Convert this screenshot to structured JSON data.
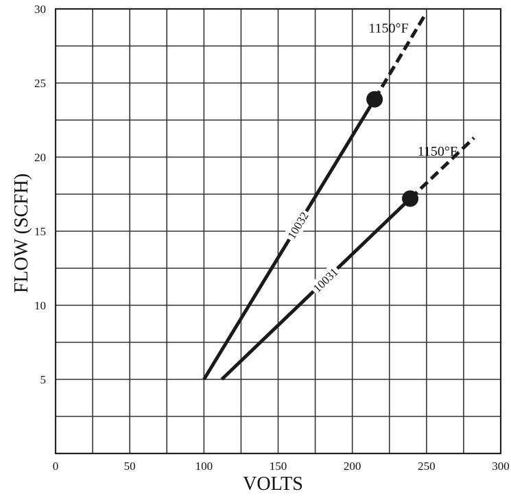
{
  "chart_data": {
    "type": "line",
    "title": "",
    "xlabel": "VOLTS",
    "ylabel": "FLOW (SCFH)",
    "xlim": [
      0,
      300
    ],
    "ylim": [
      0,
      30
    ],
    "x_ticks": [
      "0",
      "50",
      "100",
      "150",
      "200",
      "250",
      "300"
    ],
    "y_ticks": [
      "5",
      "10",
      "15",
      "20",
      "25",
      "30"
    ],
    "grid": true,
    "series": [
      {
        "name": "10032",
        "color": "#1a1a1a",
        "solid": [
          [
            100,
            5
          ],
          [
            215,
            23.9
          ]
        ],
        "dashed": [
          [
            215,
            23.9
          ],
          [
            249,
            29.6
          ]
        ],
        "marker": [
          215,
          23.9
        ],
        "marker_label": "1150°F"
      },
      {
        "name": "10031",
        "color": "#1a1a1a",
        "solid": [
          [
            112,
            5
          ],
          [
            239,
            17.2
          ]
        ],
        "dashed": [
          [
            239,
            17.2
          ],
          [
            282,
            21.3
          ]
        ],
        "marker": [
          239,
          17.2
        ],
        "marker_label": "1150°F"
      }
    ]
  }
}
